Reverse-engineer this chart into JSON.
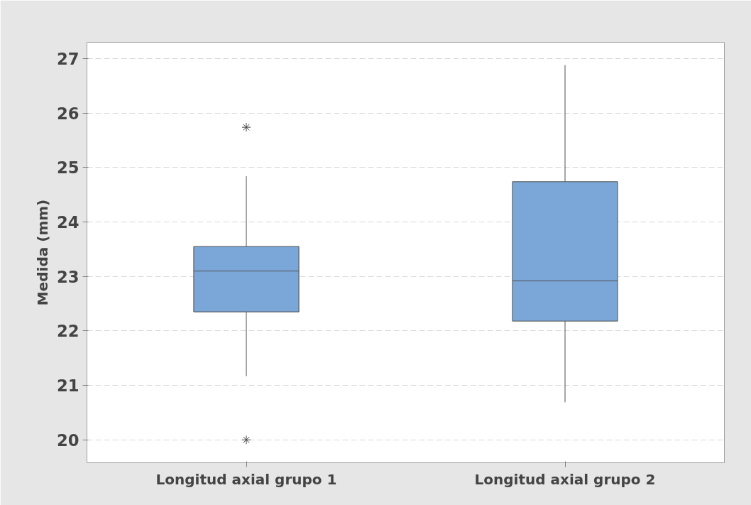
{
  "chart_data": {
    "type": "box",
    "ylabel": "Medida (mm)",
    "categories": [
      "Longitud axial grupo 1",
      "Longitud axial grupo 2"
    ],
    "boxes": [
      {
        "low": 21.17,
        "q1": 22.35,
        "median": 23.1,
        "q3": 23.55,
        "high": 24.84,
        "outliers": [
          25.74,
          20.0
        ]
      },
      {
        "low": 20.69,
        "q1": 22.18,
        "median": 22.92,
        "q3": 24.74,
        "high": 26.88
      }
    ],
    "color": "#7aa6d8",
    "ylim": [
      19.58,
      27.3
    ],
    "yticks": [
      20,
      21,
      22,
      23,
      24,
      25,
      26,
      27
    ],
    "grid": "y",
    "marker": "star"
  }
}
